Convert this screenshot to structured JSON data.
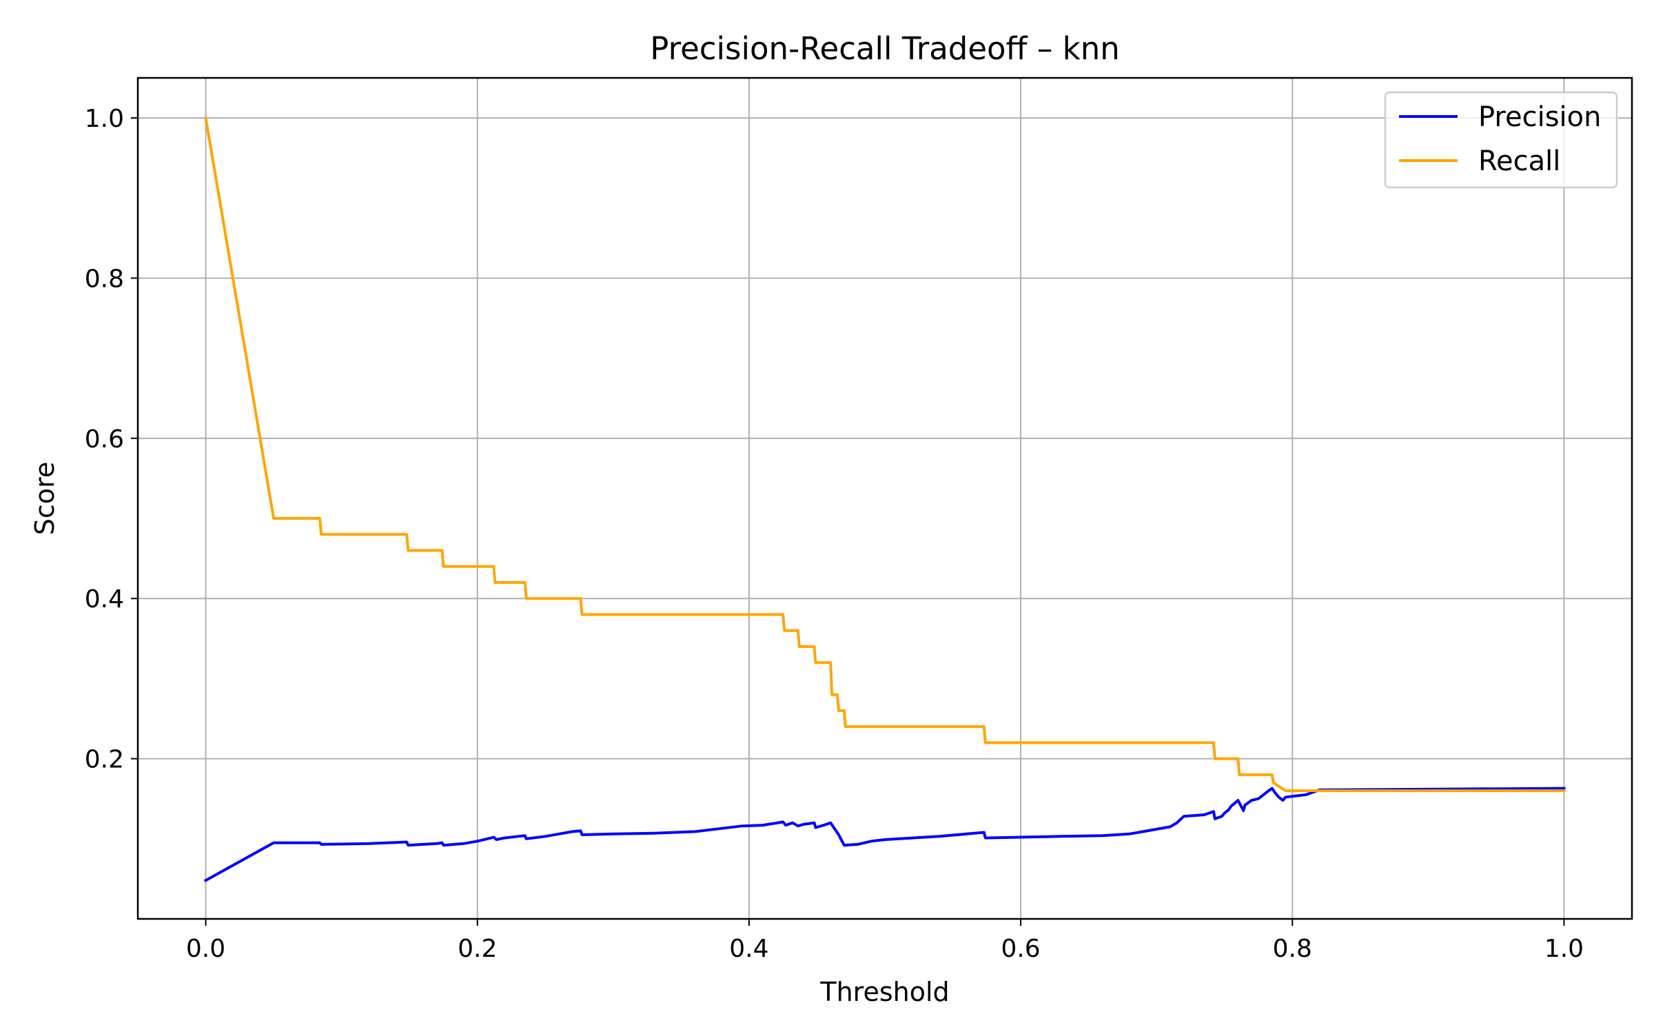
{
  "chart_data": {
    "type": "line",
    "title": "Precision-Recall Tradeoff – knn",
    "xlabel": "Threshold",
    "ylabel": "Score",
    "xlim": [
      -0.05,
      1.05
    ],
    "ylim": [
      0.0,
      1.05
    ],
    "xticks": [
      0.0,
      0.2,
      0.4,
      0.6,
      0.8,
      1.0
    ],
    "xtick_labels": [
      "0.0",
      "0.2",
      "0.4",
      "0.6",
      "0.8",
      "1.0"
    ],
    "yticks": [
      0.2,
      0.4,
      0.6,
      0.8,
      1.0
    ],
    "ytick_labels": [
      "0.2",
      "0.4",
      "0.6",
      "0.8",
      "1.0"
    ],
    "grid": true,
    "legend_position": "top-right",
    "series": [
      {
        "name": "Precision",
        "color": "#0000ff",
        "x": [
          0.0,
          0.05,
          0.084,
          0.085,
          0.12,
          0.148,
          0.149,
          0.17,
          0.174,
          0.175,
          0.19,
          0.2,
          0.21,
          0.212,
          0.214,
          0.22,
          0.235,
          0.236,
          0.25,
          0.26,
          0.27,
          0.276,
          0.277,
          0.3,
          0.33,
          0.36,
          0.38,
          0.395,
          0.41,
          0.425,
          0.427,
          0.432,
          0.436,
          0.44,
          0.448,
          0.449,
          0.455,
          0.46,
          0.466,
          0.47,
          0.48,
          0.49,
          0.5,
          0.52,
          0.54,
          0.56,
          0.573,
          0.574,
          0.6,
          0.63,
          0.66,
          0.68,
          0.69,
          0.7,
          0.71,
          0.715,
          0.72,
          0.735,
          0.742,
          0.743,
          0.748,
          0.75,
          0.753,
          0.755,
          0.758,
          0.76,
          0.764,
          0.765,
          0.77,
          0.775,
          0.778,
          0.781,
          0.785,
          0.787,
          0.79,
          0.793,
          0.795,
          0.8,
          0.81,
          0.82,
          1.0
        ],
        "y": [
          0.048,
          0.095,
          0.095,
          0.093,
          0.094,
          0.096,
          0.092,
          0.094,
          0.095,
          0.092,
          0.094,
          0.097,
          0.101,
          0.102,
          0.099,
          0.101,
          0.104,
          0.1,
          0.103,
          0.106,
          0.109,
          0.11,
          0.105,
          0.106,
          0.107,
          0.109,
          0.113,
          0.116,
          0.117,
          0.121,
          0.117,
          0.12,
          0.116,
          0.118,
          0.12,
          0.114,
          0.117,
          0.12,
          0.105,
          0.092,
          0.093,
          0.097,
          0.099,
          0.101,
          0.103,
          0.106,
          0.108,
          0.101,
          0.102,
          0.103,
          0.104,
          0.106,
          0.109,
          0.112,
          0.115,
          0.12,
          0.128,
          0.13,
          0.134,
          0.125,
          0.128,
          0.132,
          0.136,
          0.141,
          0.145,
          0.148,
          0.135,
          0.142,
          0.148,
          0.15,
          0.154,
          0.158,
          0.163,
          0.158,
          0.152,
          0.148,
          0.152,
          0.153,
          0.155,
          0.161,
          0.163
        ]
      },
      {
        "name": "Recall",
        "color": "#ffa500",
        "x": [
          0.0,
          0.05,
          0.084,
          0.085,
          0.148,
          0.149,
          0.174,
          0.175,
          0.212,
          0.213,
          0.235,
          0.236,
          0.276,
          0.277,
          0.425,
          0.426,
          0.436,
          0.437,
          0.448,
          0.449,
          0.46,
          0.461,
          0.465,
          0.466,
          0.47,
          0.471,
          0.573,
          0.574,
          0.742,
          0.743,
          0.76,
          0.761,
          0.785,
          0.786,
          0.795,
          0.8,
          1.0
        ],
        "y": [
          1.0,
          0.5,
          0.5,
          0.48,
          0.48,
          0.46,
          0.46,
          0.44,
          0.44,
          0.42,
          0.42,
          0.4,
          0.4,
          0.38,
          0.38,
          0.36,
          0.36,
          0.34,
          0.34,
          0.32,
          0.32,
          0.28,
          0.28,
          0.26,
          0.26,
          0.24,
          0.24,
          0.22,
          0.22,
          0.2,
          0.2,
          0.18,
          0.18,
          0.17,
          0.16,
          0.16,
          0.16
        ]
      }
    ]
  }
}
